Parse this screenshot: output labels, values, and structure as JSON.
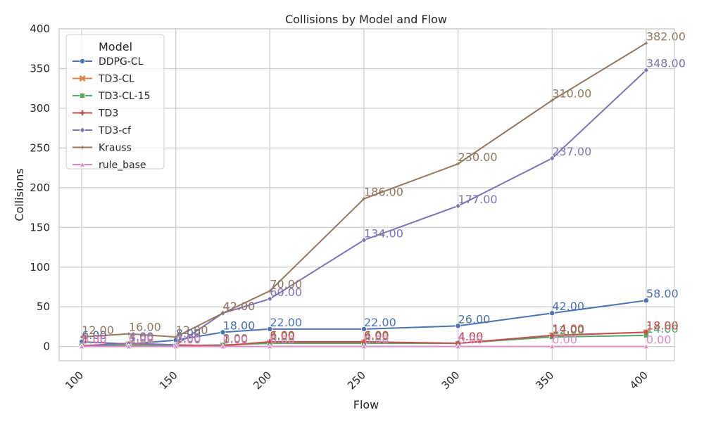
{
  "chart_data": {
    "type": "line",
    "title": "Collisions by Model and Flow",
    "xlabel": "Flow",
    "ylabel": "Collisions",
    "x": [
      100,
      125,
      150,
      175,
      200,
      250,
      300,
      350,
      400
    ],
    "xticks": [
      100,
      150,
      200,
      250,
      300,
      350,
      400
    ],
    "yticks": [
      0,
      50,
      100,
      150,
      200,
      250,
      300,
      350,
      400
    ],
    "xlim": [
      88,
      415
    ],
    "ylim": [
      -18,
      400
    ],
    "grid": true,
    "legend": {
      "title": "Model",
      "placement": "top-left"
    },
    "series": [
      {
        "name": "DDPG-CL",
        "color": "#4c72b0",
        "marker": "circle",
        "values": [
          6,
          3,
          8,
          18,
          22,
          22,
          26,
          42,
          58
        ],
        "labels": [
          "6.00",
          "3.00",
          "8.00",
          "18.00",
          "22.00",
          "22.00",
          "26.00",
          "42.00",
          "58.00"
        ]
      },
      {
        "name": "TD3-CL",
        "color": "#dd8452",
        "marker": "x",
        "values": [
          1,
          3,
          1,
          1,
          5,
          5,
          4,
          14,
          18
        ],
        "labels": [
          "1.00",
          "3.00",
          "1.00",
          "1.00",
          "5.00",
          "5.00",
          "4.00",
          "14.00",
          "18.00"
        ]
      },
      {
        "name": "TD3-CL-15",
        "color": "#55a868",
        "marker": "square",
        "values": [
          1,
          1,
          1,
          2,
          4,
          4,
          4,
          12,
          14
        ],
        "labels": [
          "1.00",
          "1.00",
          "1.00",
          "2.00",
          "4.00",
          "4.00",
          "4.00",
          "12.00",
          "14.00"
        ]
      },
      {
        "name": "TD3",
        "color": "#c44e52",
        "marker": "plus",
        "values": [
          1,
          4,
          2,
          1,
          6,
          6,
          4,
          14,
          18
        ],
        "labels": [
          "1.00",
          "4.00",
          "2.00",
          "1.00",
          "6.00",
          "6.00",
          "4.00",
          "14.00",
          "18.00"
        ]
      },
      {
        "name": "TD3-cf",
        "color": "#8172b3",
        "marker": "diamond",
        "values": [
          0,
          4,
          2,
          42,
          60,
          134,
          177,
          237,
          348
        ],
        "labels": [
          "0.00",
          "4.00",
          "2.00",
          "42.00",
          "60.00",
          "134.00",
          "177.00",
          "237.00",
          "348.00"
        ]
      },
      {
        "name": "Krauss",
        "color": "#937860",
        "marker": "star",
        "values": [
          12,
          16,
          12,
          42,
          70,
          186,
          230,
          310,
          382
        ],
        "labels": [
          "12.00",
          "16.00",
          "12.00",
          "42.00",
          "70.00",
          "186.00",
          "230.00",
          "310.00",
          "382.00"
        ]
      },
      {
        "name": "rule_base",
        "color": "#da8bc3",
        "marker": "triangle",
        "values": [
          0,
          0,
          0,
          0,
          0,
          0,
          0,
          0,
          0
        ],
        "labels": [
          "0.00",
          "0.00",
          "0.00",
          "0.00",
          "0.00",
          "0.00",
          "0.00",
          "0.00",
          "0.00"
        ]
      }
    ]
  }
}
